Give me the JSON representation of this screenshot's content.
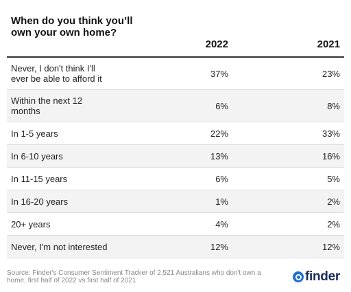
{
  "chart_data": {
    "type": "table",
    "title": "When do you think you’ll own your own home?",
    "columns": [
      "2022",
      "2021"
    ],
    "rows": [
      {
        "label": "Never, I don't think I'll ever be able to afford it",
        "values": [
          "37%",
          "23%"
        ]
      },
      {
        "label": "Within the next 12 months",
        "values": [
          "6%",
          "8%"
        ]
      },
      {
        "label": "In 1-5 years",
        "values": [
          "22%",
          "33%"
        ]
      },
      {
        "label": "In 6-10 years",
        "values": [
          "13%",
          "16%"
        ]
      },
      {
        "label": "In 11-15 years",
        "values": [
          "6%",
          "5%"
        ]
      },
      {
        "label": "In 16-20 years",
        "values": [
          "1%",
          "2%"
        ]
      },
      {
        "label": "20+ years",
        "values": [
          "4%",
          "2%"
        ]
      },
      {
        "label": "Never, I'm not interested",
        "values": [
          "12%",
          "12%"
        ]
      }
    ]
  },
  "footer": {
    "source": "Source: Finder's Consumer Sentiment Tracker of 2,521 Australians who don't own a home, first half of 2022 vs first half of 2021",
    "logo_text": "finder",
    "logo_icon": "search-icon",
    "brand_color": "#1f6fd1"
  }
}
